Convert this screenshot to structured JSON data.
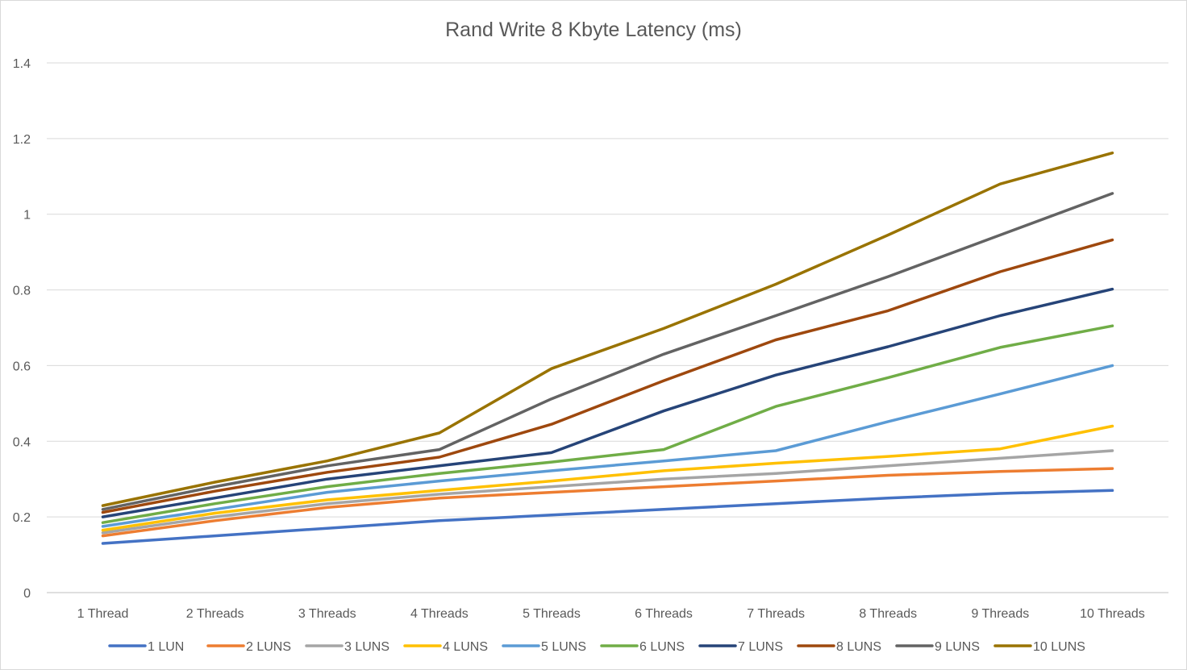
{
  "chart_data": {
    "type": "line",
    "title": "Rand Write 8 Kbyte Latency (ms)",
    "xlabel": "",
    "ylabel": "",
    "ylim": [
      0,
      1.4
    ],
    "y_ticks": [
      0,
      0.2,
      0.4,
      0.6,
      0.8,
      1,
      1.2,
      1.4
    ],
    "y_tick_labels": [
      "0",
      "0.2",
      "0.4",
      "0.6",
      "0.8",
      "1",
      "1.2",
      "1.4"
    ],
    "grid": true,
    "legend_position": "bottom",
    "categories": [
      "1 Thread",
      "2 Threads",
      "3 Threads",
      "4 Threads",
      "5 Threads",
      "6 Threads",
      "7 Threads",
      "8 Threads",
      "9 Threads",
      "10 Threads"
    ],
    "series": [
      {
        "name": "1 LUN",
        "color": "#4472C4",
        "values": [
          0.13,
          0.15,
          0.17,
          0.19,
          0.205,
          0.22,
          0.235,
          0.25,
          0.262,
          0.27
        ]
      },
      {
        "name": "2 LUNS",
        "color": "#ED7D31",
        "values": [
          0.15,
          0.19,
          0.225,
          0.25,
          0.265,
          0.28,
          0.295,
          0.31,
          0.32,
          0.328
        ]
      },
      {
        "name": "3 LUNS",
        "color": "#A5A5A5",
        "values": [
          0.158,
          0.2,
          0.235,
          0.26,
          0.28,
          0.3,
          0.315,
          0.335,
          0.355,
          0.375
        ]
      },
      {
        "name": "4 LUNS",
        "color": "#FFC000",
        "values": [
          0.165,
          0.21,
          0.245,
          0.27,
          0.295,
          0.322,
          0.342,
          0.36,
          0.38,
          0.44
        ]
      },
      {
        "name": "5 LUNS",
        "color": "#5B9BD5",
        "values": [
          0.175,
          0.22,
          0.265,
          0.295,
          0.322,
          0.348,
          0.375,
          0.452,
          0.525,
          0.6
        ]
      },
      {
        "name": "6 LUNS",
        "color": "#70AD47",
        "values": [
          0.185,
          0.235,
          0.28,
          0.315,
          0.345,
          0.378,
          0.492,
          0.568,
          0.648,
          0.705
        ]
      },
      {
        "name": "7 LUNS",
        "color": "#264478",
        "values": [
          0.2,
          0.25,
          0.3,
          0.335,
          0.37,
          0.48,
          0.575,
          0.65,
          0.732,
          0.802
        ]
      },
      {
        "name": "8 LUNS",
        "color": "#9E480E",
        "values": [
          0.212,
          0.268,
          0.318,
          0.358,
          0.445,
          0.56,
          0.668,
          0.745,
          0.848,
          0.932
        ]
      },
      {
        "name": "9 LUNS",
        "color": "#636363",
        "values": [
          0.22,
          0.28,
          0.335,
          0.378,
          0.512,
          0.63,
          0.732,
          0.835,
          0.945,
          1.055
        ]
      },
      {
        "name": "10 LUNS",
        "color": "#997300",
        "values": [
          0.23,
          0.292,
          0.348,
          0.422,
          0.592,
          0.698,
          0.815,
          0.945,
          1.08,
          1.162
        ]
      }
    ]
  }
}
